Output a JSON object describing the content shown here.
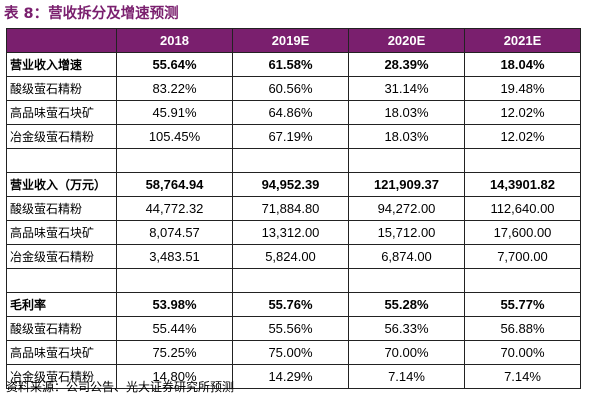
{
  "title": "表 8：营收拆分及增速预测",
  "table": {
    "years": [
      "2018",
      "2019E",
      "2020E",
      "2021E"
    ],
    "sections": [
      {
        "header": {
          "label": "营业收入增速",
          "values": [
            "55.64%",
            "61.58%",
            "28.39%",
            "18.04%"
          ]
        },
        "rows": [
          {
            "label": "酸级萤石精粉",
            "values": [
              "83.22%",
              "60.56%",
              "31.14%",
              "19.48%"
            ]
          },
          {
            "label": "高品味萤石块矿",
            "values": [
              "45.91%",
              "64.86%",
              "18.03%",
              "12.02%"
            ]
          },
          {
            "label": "冶金级萤石精粉",
            "values": [
              "105.45%",
              "67.19%",
              "18.03%",
              "12.02%"
            ]
          }
        ]
      },
      {
        "header": {
          "label": "营业收入（万元）",
          "values": [
            "58,764.94",
            "94,952.39",
            "121,909.37",
            "14,3901.82"
          ]
        },
        "rows": [
          {
            "label": "酸级萤石精粉",
            "values": [
              "44,772.32",
              "71,884.80",
              "94,272.00",
              "112,640.00"
            ]
          },
          {
            "label": "高品味萤石块矿",
            "values": [
              "8,074.57",
              "13,312.00",
              "15,712.00",
              "17,600.00"
            ]
          },
          {
            "label": "冶金级萤石精粉",
            "values": [
              "3,483.51",
              "5,824.00",
              "6,874.00",
              "7,700.00"
            ]
          }
        ]
      },
      {
        "header": {
          "label": "毛利率",
          "values": [
            "53.98%",
            "55.76%",
            "55.28%",
            "55.77%"
          ]
        },
        "rows": [
          {
            "label": "酸级萤石精粉",
            "values": [
              "55.44%",
              "55.56%",
              "56.33%",
              "56.88%"
            ]
          },
          {
            "label": "高品味萤石块矿",
            "values": [
              "75.25%",
              "75.00%",
              "70.00%",
              "70.00%"
            ]
          },
          {
            "label": "冶金级萤石精粉",
            "values": [
              "14.80%",
              "14.29%",
              "7.14%",
              "7.14%"
            ]
          }
        ]
      }
    ]
  },
  "source": "资料来源：公司公告、光大证券研究所预测",
  "colors": {
    "header_bg": "#7a1f6e",
    "title": "#7a1f6e",
    "border": "#222222"
  }
}
